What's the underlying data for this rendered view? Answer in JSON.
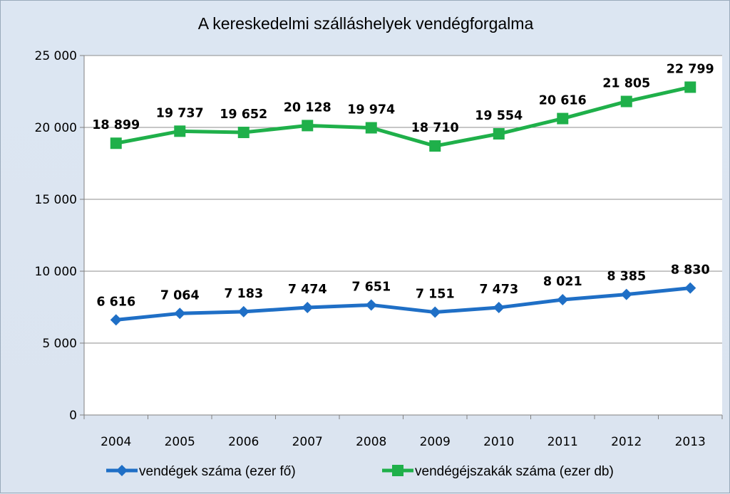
{
  "chart_data": {
    "type": "line",
    "title": "A kereskedelmi szálláshelyek vendégforgalma",
    "categories": [
      "2004",
      "2005",
      "2006",
      "2007",
      "2008",
      "2009",
      "2010",
      "2011",
      "2012",
      "2013"
    ],
    "ylim": [
      0,
      25000
    ],
    "yticks": [
      0,
      5000,
      10000,
      15000,
      20000,
      25000
    ],
    "ytick_labels": [
      "0",
      "5 000",
      "10 000",
      "15 000",
      "20 000",
      "25 000"
    ],
    "grid": true,
    "legend_position": "bottom",
    "series": [
      {
        "name": "vendégek száma (ezer fő)",
        "color": "#1f6fc6",
        "marker": "diamond",
        "values": [
          6616,
          7064,
          7183,
          7474,
          7651,
          7151,
          7473,
          8021,
          8385,
          8830
        ],
        "labels": [
          "6 616",
          "7 064",
          "7 183",
          "7 474",
          "7 651",
          "7 151",
          "7 473",
          "8 021",
          "8 385",
          "8 830"
        ]
      },
      {
        "name": "vendégéjszakák száma (ezer db)",
        "color": "#1fb04a",
        "marker": "square",
        "values": [
          18899,
          19737,
          19652,
          20128,
          19974,
          18710,
          19554,
          20616,
          21805,
          22799
        ],
        "labels": [
          "18 899",
          "19 737",
          "19 652",
          "20 128",
          "19 974",
          "18 710",
          "19 554",
          "20 616",
          "21 805",
          "22 799"
        ]
      }
    ]
  }
}
